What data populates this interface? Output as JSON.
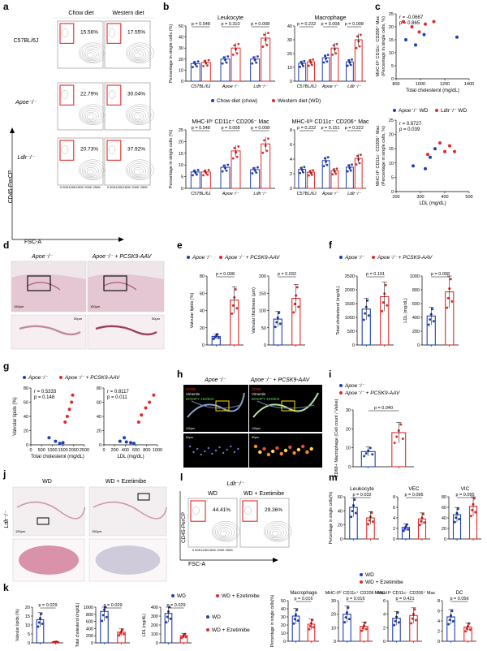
{
  "colors": {
    "blue": "#1f3fb5",
    "red": "#e02b2b",
    "pink": "#e8a5b5",
    "tissue": "#d9a0b0"
  },
  "panel_letters": [
    "a",
    "b",
    "c",
    "d",
    "e",
    "f",
    "g",
    "h",
    "i",
    "j",
    "k",
    "l",
    "m"
  ],
  "panel_a": {
    "columns": [
      "Chow diet",
      "Western diet"
    ],
    "rows": [
      "C57BL/6J",
      "Apoe⁻/⁻",
      "Ldlr⁻/⁻"
    ],
    "percentages": [
      [
        "15.56%",
        "17.55%"
      ],
      [
        "22.79%",
        "30.04%"
      ],
      [
        "20.73%",
        "37.92%"
      ]
    ],
    "ylabel": "CD45-PerCP",
    "xlabel": "FSC-A",
    "ticks": "0 50K100K150K 200K 250K"
  },
  "legend_b": {
    "chow": "Chow diet (chow)",
    "wd": "Western diet (WD)"
  },
  "legend_ef": {
    "a": "Apoe⁻/⁻",
    "b": "Apoe⁻/⁻ + PCSK9-AAV"
  },
  "legend_c": {
    "a": "Apoe⁻/⁻ WD",
    "b": "Ldlr⁻/⁻ WD"
  },
  "legend_k": {
    "a": "WD",
    "b": "WD + Ezetimibe"
  },
  "chart_data": [
    {
      "id": "b1",
      "type": "bar",
      "title": "Leukocyte",
      "ylabel": "Percentage in single cells (%)",
      "ylim": [
        0,
        50
      ],
      "yticks": [
        0,
        10,
        20,
        30,
        40,
        50
      ],
      "categories": [
        "C57BL/6J",
        "Apoe⁻/⁻",
        "Ldlr⁻/⁻"
      ],
      "series": [
        {
          "name": "Chow diet (chow)",
          "values": [
            16,
            20,
            20
          ]
        },
        {
          "name": "Western diet (WD)",
          "values": [
            17,
            30,
            39
          ]
        }
      ],
      "pvalues": [
        "p = 0.548",
        "p = 0.310",
        "p = 0.008"
      ]
    },
    {
      "id": "b2",
      "type": "bar",
      "title": "Macrophage",
      "ylim": [
        0,
        40
      ],
      "yticks": [
        0,
        10,
        20,
        30,
        40
      ],
      "categories": [
        "C57BL/6J",
        "Apoe⁻/⁻",
        "Ldlr⁻/⁻"
      ],
      "series": [
        {
          "name": "Chow diet (chow)",
          "values": [
            13,
            17,
            14
          ]
        },
        {
          "name": "Western diet (WD)",
          "values": [
            14,
            24,
            30
          ]
        }
      ],
      "pvalues": [
        "p = 0.222",
        "p = 0.008",
        "p = 0.008"
      ]
    },
    {
      "id": "b3",
      "type": "bar",
      "title": "MHC-IIʰⁱ CD11c⁺ CD206⁻ Mac",
      "ylabel": "Percentage in single cells (%)",
      "ylim": [
        0,
        25
      ],
      "yticks": [
        0,
        5,
        10,
        15,
        20,
        25
      ],
      "categories": [
        "C57BL/6J",
        "Apoe⁻/⁻",
        "Ldlr⁻/⁻"
      ],
      "series": [
        {
          "name": "Chow diet (chow)",
          "values": [
            7,
            9,
            8
          ]
        },
        {
          "name": "Western diet (WD)",
          "values": [
            7,
            16,
            19
          ]
        }
      ],
      "pvalues": [
        "p = 0.548",
        "p = 0.008",
        "p = 0.008"
      ]
    },
    {
      "id": "b4",
      "type": "bar",
      "title": "MHC-IIˡᵒ CD11c⁻ CD206⁺ Mac",
      "ylim": [
        0,
        8
      ],
      "yticks": [
        0,
        2,
        4,
        6,
        8
      ],
      "categories": [
        "C57BL/6J",
        "Apoe⁻/⁻",
        "Ldlr⁻/⁻"
      ],
      "series": [
        {
          "name": "Chow diet (chow)",
          "values": [
            2.6,
            3.8,
            2.9
          ]
        },
        {
          "name": "Western diet (WD)",
          "values": [
            2.2,
            2.4,
            4.1
          ]
        }
      ],
      "pvalues": [
        "p = 0.222",
        "p = 0.151",
        "p = 0.222"
      ]
    },
    {
      "id": "c1",
      "type": "scatter",
      "xlabel": "Total cholesterol (mg/dL)",
      "ylabel": "MHC-IIˡᵒ CD11c⁻ CD206⁺ Mac (Percentage in single cells, %)",
      "xlim": [
        800,
        1400
      ],
      "ylim": [
        0,
        25
      ],
      "xticks": [
        800,
        1000,
        1200,
        1400
      ],
      "yticks": [
        0,
        5,
        10,
        15,
        20,
        25
      ],
      "annotation": [
        "r = -0.0667",
        "p = 0.865"
      ],
      "series": [
        {
          "name": "Apoe⁻/⁻ WD",
          "points": [
            [
              880,
              15
            ],
            [
              960,
              13
            ],
            [
              1030,
              17
            ],
            [
              1300,
              16
            ]
          ]
        },
        {
          "name": "Ldlr⁻/⁻ WD",
          "points": [
            [
              860,
              22
            ],
            [
              930,
              20
            ],
            [
              990,
              18
            ],
            [
              1040,
              21
            ],
            [
              1110,
              22
            ]
          ]
        }
      ]
    },
    {
      "id": "c2",
      "type": "scatter",
      "xlabel": "LDL (mg/dL)",
      "ylabel": "MHC-IIˡᵒ CD11c⁻ CD206⁺ Mac (Percentage in single cells, %)",
      "xlim": [
        200,
        500
      ],
      "ylim": [
        0,
        25
      ],
      "xticks": [
        200,
        300,
        400,
        500
      ],
      "yticks": [
        0,
        5,
        10,
        15,
        20,
        25
      ],
      "annotation": [
        "r = 0.6727",
        "p = 0.039"
      ],
      "series": [
        {
          "name": "Apoe⁻/⁻ WD",
          "points": [
            [
              270,
              9
            ],
            [
              320,
              8
            ],
            [
              340,
              12
            ],
            [
              360,
              15
            ]
          ]
        },
        {
          "name": "Ldlr⁻/⁻ WD",
          "points": [
            [
              330,
              13
            ],
            [
              380,
              17
            ],
            [
              400,
              14
            ],
            [
              420,
              16
            ],
            [
              440,
              14
            ]
          ]
        }
      ]
    },
    {
      "id": "e1",
      "type": "bar",
      "ylabel": "Valvular lipids (%)",
      "ylim": [
        0,
        80
      ],
      "yticks": [
        0,
        20,
        40,
        60,
        80
      ],
      "categories": [
        "Apoe⁻/⁻",
        "Apoe⁻/⁻ + PCSK9-AAV"
      ],
      "values": [
        10,
        52
      ],
      "pvalue": "p = 0.008"
    },
    {
      "id": "e2",
      "type": "bar",
      "ylabel": "Valvular thickness (μm)",
      "ylim": [
        0,
        200
      ],
      "yticks": [
        0,
        50,
        100,
        150,
        200
      ],
      "categories": [
        "Apoe⁻/⁻",
        "Apoe⁻/⁻ + PCSK9-AAV"
      ],
      "values": [
        75,
        135
      ],
      "pvalue": "p = 0.032"
    },
    {
      "id": "f1",
      "type": "bar",
      "ylabel": "Total cholesterol (mg/dL)",
      "ylim": [
        0,
        2500
      ],
      "yticks": [
        0,
        500,
        1000,
        1500,
        2000,
        2500
      ],
      "categories": [
        "Apoe⁻/⁻",
        "Apoe⁻/⁻ + PCSK9-AAV"
      ],
      "values": [
        1300,
        1750
      ],
      "pvalue": "p = 0.191"
    },
    {
      "id": "f2",
      "type": "bar",
      "ylabel": "LDL (mg/dL)",
      "ylim": [
        0,
        1000
      ],
      "yticks": [
        0,
        200,
        400,
        600,
        800,
        1000
      ],
      "categories": [
        "Apoe⁻/⁻",
        "Apoe⁻/⁻ + PCSK9-AAV"
      ],
      "values": [
        420,
        770
      ],
      "pvalue": "p = 0.008"
    },
    {
      "id": "g1",
      "type": "scatter",
      "xlabel": "Total cholesterol (mg/dL)",
      "ylabel": "Valvular lipids (%)",
      "xlim": [
        0,
        2500
      ],
      "ylim": [
        0,
        80
      ],
      "xticks": [
        0,
        500,
        1000,
        1500,
        2000,
        2500
      ],
      "yticks": [
        0,
        20,
        40,
        60,
        80
      ],
      "annotation": [
        "r = 0.5333",
        "p = 0.148"
      ],
      "series": [
        {
          "name": "Apoe⁻/⁻",
          "points": [
            [
              850,
              10
            ],
            [
              1150,
              5
            ],
            [
              1350,
              2
            ],
            [
              1500,
              3
            ]
          ]
        },
        {
          "name": "Apoe⁻/⁻ + PCSK9-AAV",
          "points": [
            [
              1600,
              32
            ],
            [
              1700,
              40
            ],
            [
              1800,
              50
            ],
            [
              1900,
              60
            ],
            [
              1950,
              70
            ]
          ]
        }
      ]
    },
    {
      "id": "g2",
      "type": "scatter",
      "xlabel": "LDL (mg/dL)",
      "ylabel": "",
      "xlim": [
        0,
        1000
      ],
      "ylim": [
        0,
        80
      ],
      "xticks": [
        0,
        200,
        400,
        600,
        800,
        1000
      ],
      "yticks": [
        0,
        20,
        40,
        60,
        80
      ],
      "annotation": [
        "r = 0.8117",
        "p = 0.011"
      ],
      "series": [
        {
          "name": "Apoe⁻/⁻",
          "points": [
            [
              300,
              5
            ],
            [
              380,
              10
            ],
            [
              420,
              4
            ],
            [
              500,
              3
            ],
            [
              560,
              2
            ]
          ]
        },
        {
          "name": "Apoe⁻/⁻ + PCSK9-AAV",
          "points": [
            [
              650,
              32
            ],
            [
              700,
              42
            ],
            [
              780,
              52
            ],
            [
              850,
              60
            ],
            [
              930,
              70
            ]
          ]
        }
      ]
    },
    {
      "id": "i1",
      "type": "bar",
      "ylabel": "CD68+ Macrophage (Cell count / Valve)",
      "ylim": [
        0,
        30
      ],
      "yticks": [
        0,
        10,
        20,
        30
      ],
      "categories": [
        "Apoe⁻/⁻",
        "Apoe⁻/⁻ + PCSK9-AAV"
      ],
      "values": [
        8,
        18
      ],
      "pvalue": "p = 0.040"
    },
    {
      "id": "k1",
      "type": "bar",
      "ylabel": "Valvular lipids (%)",
      "ylim": [
        0,
        20
      ],
      "yticks": [
        0,
        5,
        10,
        15,
        20
      ],
      "categories": [
        "WD",
        "WD + Ezetimibe"
      ],
      "values": [
        13,
        0.5
      ],
      "pvalue": "p = 0.029"
    },
    {
      "id": "k2",
      "type": "bar",
      "ylabel": "Total cholesterol (mg/dL)",
      "ylim": [
        0,
        1000
      ],
      "yticks": [
        0,
        200,
        400,
        600,
        800,
        1000
      ],
      "categories": [
        "WD",
        "WD + Ezetimibe"
      ],
      "values": [
        880,
        300
      ],
      "pvalue": "p = 0.029"
    },
    {
      "id": "k3",
      "type": "bar",
      "ylabel": "LDL (mg/dL)",
      "ylim": [
        0,
        400
      ],
      "yticks": [
        0,
        100,
        200,
        300,
        400
      ],
      "categories": [
        "WD",
        "WD + Ezetimibe"
      ],
      "values": [
        330,
        80
      ],
      "pvalue": "p = 0.029"
    },
    {
      "id": "m1",
      "type": "bar",
      "title": "Leukocyte",
      "ylabel": "Percentage in single cells(%)",
      "ylim": [
        0,
        60
      ],
      "yticks": [
        0,
        20,
        40,
        60
      ],
      "categories": [
        "WD",
        "WD + Ezetimibe"
      ],
      "values": [
        45,
        30
      ],
      "pvalue": "p = 0.032"
    },
    {
      "id": "m2",
      "type": "bar",
      "title": "VEC",
      "ylim": [
        0,
        8
      ],
      "yticks": [
        0,
        2,
        4,
        6,
        8
      ],
      "categories": [
        "WD",
        "WD + Ezetimibe"
      ],
      "values": [
        2.2,
        3.8
      ],
      "pvalue": "p = 0.095"
    },
    {
      "id": "m3",
      "type": "bar",
      "title": "VIC",
      "ylim": [
        0,
        80
      ],
      "yticks": [
        0,
        20,
        40,
        60,
        80
      ],
      "categories": [
        "WD",
        "WD + Ezetimibe"
      ],
      "values": [
        46,
        62
      ],
      "pvalue": "p = 0.095"
    },
    {
      "id": "m4",
      "type": "bar",
      "title": "Macrophage",
      "ylabel": "Percentage in single cells(%)",
      "ylim": [
        0,
        50
      ],
      "yticks": [
        0,
        10,
        20,
        30,
        40,
        50
      ],
      "categories": [
        "WD",
        "WD + Ezetimibe"
      ],
      "values": [
        31,
        21
      ],
      "pvalue": "p = 0.016"
    },
    {
      "id": "m5",
      "type": "bar",
      "title": "MHC-IIʰⁱ CD11c⁺ CD206⁻ Mac",
      "ylim": [
        0,
        30
      ],
      "yticks": [
        0,
        10,
        20,
        30
      ],
      "categories": [
        "WD",
        "WD + Ezetimibe"
      ],
      "values": [
        20,
        11
      ],
      "pvalue": "p = 0.016"
    },
    {
      "id": "m6",
      "type": "bar",
      "title": "MHC-IIˡᵒ CD11c⁻ CD206⁺ Mac",
      "ylim": [
        0,
        6
      ],
      "yticks": [
        0,
        2,
        4,
        6
      ],
      "categories": [
        "WD",
        "WD + Ezetimibe"
      ],
      "values": [
        3.4,
        3.8
      ],
      "pvalue": "p = 0.421"
    },
    {
      "id": "m7",
      "type": "bar",
      "title": "DC",
      "ylim": [
        0,
        8
      ],
      "yticks": [
        0,
        2,
        4,
        6,
        8
      ],
      "categories": [
        "WD",
        "WD + Ezetimibe"
      ],
      "values": [
        4.8,
        2.8
      ],
      "pvalue": "p = 0.056"
    }
  ],
  "panel_d": {
    "labels": [
      "Apoe⁻/⁻",
      "Apoe⁻/⁻ + PCSK9-AAV"
    ],
    "scalebar": "150μm",
    "scalebar_small": "50μm"
  },
  "panel_h": {
    "labels": [
      "Apoe⁻/⁻",
      "Apoe⁻/⁻ + PCSK9-AAV"
    ],
    "stain1": "Vimentin",
    "stain2": "BODIPY 493/503",
    "stain3": "CD68",
    "scalebar": "100μm",
    "scalebar_small": "50μm"
  },
  "panel_j": {
    "labels": [
      "WD",
      "WD + Ezetimibe"
    ],
    "side": "Ldlr⁻/⁻",
    "scalebar": "150μm"
  },
  "panel_l": {
    "title": "Ldlr⁻/⁻",
    "columns": [
      "WD",
      "WD + Ezetimibe"
    ],
    "percentages": [
      "44.41%",
      "29.36%"
    ],
    "ylabel": "CD45-PerCP",
    "xlabel": "FSC-A",
    "ticks": "0 50K100K150K 200K 250K"
  }
}
